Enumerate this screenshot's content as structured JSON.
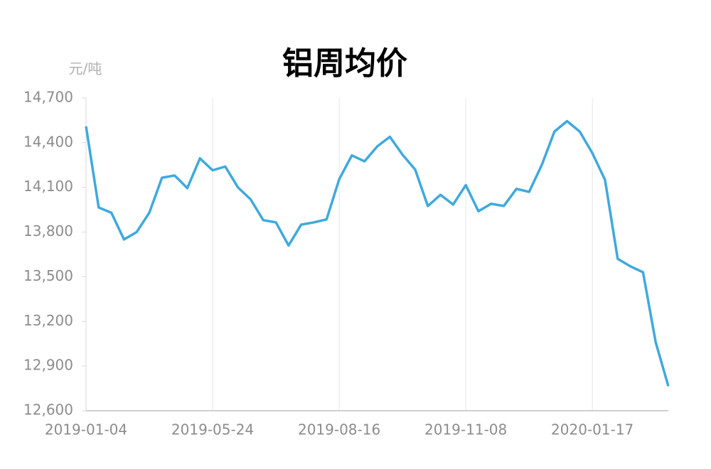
{
  "chart_data": {
    "type": "line",
    "title": "铝周均价",
    "y_unit": "元/吨",
    "categories": [
      "2019-01-04",
      null,
      null,
      null,
      null,
      null,
      null,
      null,
      null,
      null,
      "2019-05-24",
      null,
      null,
      null,
      null,
      null,
      null,
      null,
      null,
      null,
      "2019-08-16",
      null,
      null,
      null,
      null,
      null,
      null,
      null,
      null,
      null,
      "2019-11-08",
      null,
      null,
      null,
      null,
      null,
      null,
      null,
      null,
      null,
      "2020-01-17",
      null,
      null,
      null,
      null,
      null,
      null
    ],
    "series": [
      {
        "name": "铝周均价",
        "color": "#3fa9dd",
        "values": [
          14510,
          13965,
          13930,
          13750,
          13800,
          13930,
          14165,
          14180,
          14095,
          14295,
          14215,
          14240,
          14100,
          14020,
          13880,
          13865,
          13710,
          13850,
          13865,
          13885,
          14155,
          14315,
          14275,
          14375,
          14440,
          14320,
          14220,
          13975,
          14050,
          13985,
          14115,
          13940,
          13990,
          13975,
          14090,
          14070,
          14250,
          14475,
          14545,
          14475,
          14330,
          14150,
          13620,
          13570,
          13530,
          13060,
          12765
        ]
      }
    ],
    "ylim": [
      12600,
      14700
    ],
    "yticks": [
      {
        "value": 12600,
        "label": "12,600"
      },
      {
        "value": 12900,
        "label": "12,900"
      },
      {
        "value": 13200,
        "label": "13,200"
      },
      {
        "value": 13500,
        "label": "13,500"
      },
      {
        "value": 13800,
        "label": "13,800"
      },
      {
        "value": 14100,
        "label": "14,100"
      },
      {
        "value": 14400,
        "label": "14,400"
      },
      {
        "value": 14700,
        "label": "14,700"
      }
    ],
    "grid": "x"
  }
}
